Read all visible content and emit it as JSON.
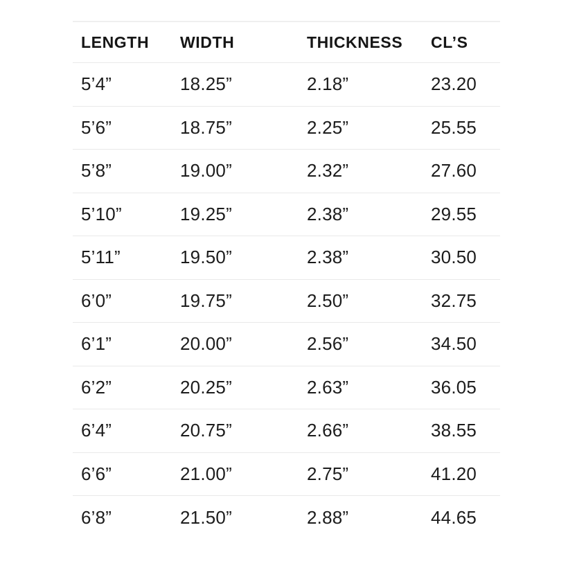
{
  "chart_data": {
    "type": "table",
    "title": "",
    "columns": [
      "LENGTH",
      "WIDTH",
      "THICKNESS",
      "CL’S"
    ],
    "rows": [
      [
        "5’4”",
        "18.25”",
        "2.18”",
        "23.20"
      ],
      [
        "5’6”",
        "18.75”",
        "2.25”",
        "25.55"
      ],
      [
        "5’8”",
        "19.00”",
        "2.32”",
        "27.60"
      ],
      [
        "5’10”",
        "19.25”",
        "2.38”",
        "29.55"
      ],
      [
        "5’11”",
        "19.50”",
        "2.38”",
        "30.50"
      ],
      [
        "6’0”",
        "19.75”",
        "2.50”",
        "32.75"
      ],
      [
        "6’1”",
        "20.00”",
        "2.56”",
        "34.50"
      ],
      [
        "6’2”",
        "20.25”",
        "2.63”",
        "36.05"
      ],
      [
        "6’4”",
        "20.75”",
        "2.66”",
        "38.55"
      ],
      [
        "6’6”",
        "21.00”",
        "2.75”",
        "41.20"
      ],
      [
        "6’8”",
        "21.50”",
        "2.88”",
        "44.65"
      ]
    ],
    "layout": {
      "grid": "horizontal-separators-only",
      "header_style": "bold-uppercase"
    }
  },
  "colors": {
    "background": "#ffffff",
    "text": "#1c1c1c",
    "divider": "#e9e9e9"
  }
}
